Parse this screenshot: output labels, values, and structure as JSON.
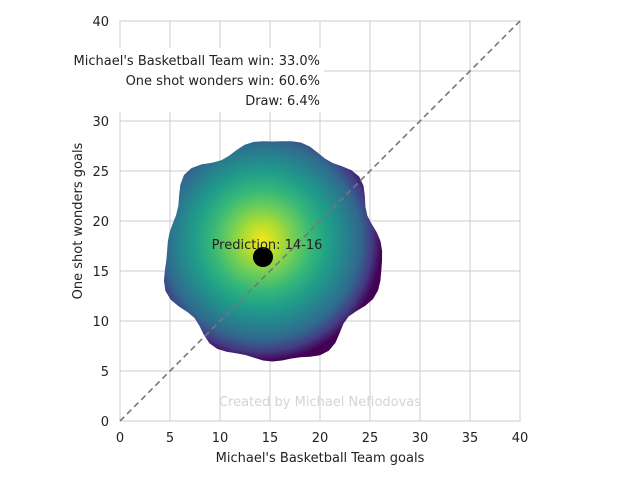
{
  "chart_data": {
    "type": "heatmap",
    "xlabel": "Michael's Basketball Team goals",
    "ylabel": "One shot wonders goals",
    "xlim": [
      0,
      40
    ],
    "ylim": [
      0,
      40
    ],
    "xticks": [
      "0",
      "5",
      "10",
      "15",
      "20",
      "25",
      "30",
      "35",
      "40"
    ],
    "yticks": [
      "0",
      "5",
      "10",
      "15",
      "20",
      "25",
      "30",
      "35",
      "40"
    ],
    "grid": true,
    "diagonal_line": {
      "from": [
        0,
        0
      ],
      "to": [
        40,
        40
      ],
      "style": "dashed",
      "color": "#777777"
    },
    "density": {
      "center": [
        14,
        15.5
      ],
      "extent_x": [
        4.5,
        26
      ],
      "extent_y": [
        6,
        28
      ],
      "colormap": "viridis"
    },
    "prediction_point": {
      "x": 14.3,
      "y": 16.4,
      "color": "#000000"
    },
    "prediction_label": "Prediction: 14-16",
    "annotations": [
      "Michael's Basketball Team win: 33.0%",
      "One shot wonders win: 60.6%",
      "Draw: 6.4%"
    ],
    "watermark": "Created by Michael Nefiodovas"
  }
}
